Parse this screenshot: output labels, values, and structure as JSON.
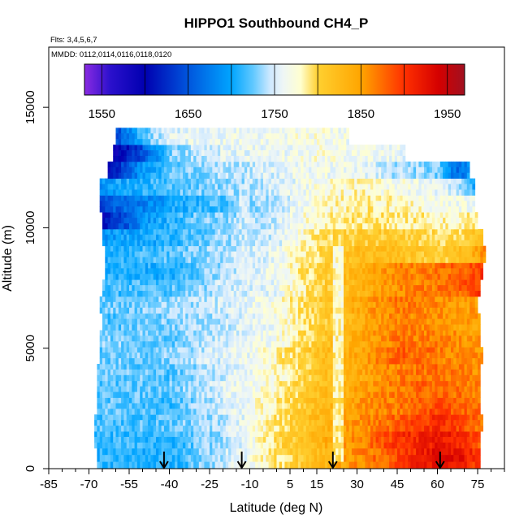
{
  "chart_data": {
    "type": "heatmap",
    "title": "HIPPO1 Southbound CH4_P",
    "flights_note": "Flts: 3,4,5,6,7",
    "mmdd_note": "MMDD: 0112,0114,0116,0118,0120",
    "xlabel": "Latitude (deg N)",
    "ylabel": "Altitude (m)",
    "xlim": [
      -85,
      85
    ],
    "ylim": [
      0,
      17500
    ],
    "x_major_ticks": [
      -85,
      -70,
      -55,
      -40,
      -25,
      -10,
      5,
      15,
      30,
      45,
      60,
      75
    ],
    "x_tick_labels": [
      "-85",
      "-70",
      "-55",
      "-40",
      "-25",
      "-10",
      "5",
      "15",
      "30",
      "45",
      "60",
      "75"
    ],
    "x_minor_ticks": [
      -80,
      -75,
      -65,
      -60,
      -50,
      -45,
      -35,
      -30,
      -20,
      -15,
      -5,
      0,
      10,
      20,
      25,
      35,
      40,
      50,
      55,
      65,
      70,
      80,
      85
    ],
    "y_ticks": [
      0,
      5000,
      10000,
      15000
    ],
    "y_tick_labels": [
      "0",
      "5000",
      "10000",
      "15000"
    ],
    "colorbar": {
      "min": 1530,
      "max": 1970,
      "ticks": [
        1550,
        1650,
        1750,
        1850,
        1950
      ],
      "tick_labels": [
        "1550",
        "1650",
        "1750",
        "1850",
        "1950"
      ],
      "divisions": [
        1550,
        1600,
        1650,
        1700,
        1750,
        1800,
        1850,
        1900,
        1950
      ],
      "stops": [
        {
          "value": 1530,
          "color": "#8a2be2"
        },
        {
          "value": 1560,
          "color": "#2b10cc"
        },
        {
          "value": 1600,
          "color": "#0000b0"
        },
        {
          "value": 1650,
          "color": "#0055dd"
        },
        {
          "value": 1700,
          "color": "#00a5ff"
        },
        {
          "value": 1725,
          "color": "#60c8ff"
        },
        {
          "value": 1745,
          "color": "#cfe9ff"
        },
        {
          "value": 1760,
          "color": "#eef6f6"
        },
        {
          "value": 1780,
          "color": "#ffffd0"
        },
        {
          "value": 1800,
          "color": "#ffd030"
        },
        {
          "value": 1850,
          "color": "#ffa500"
        },
        {
          "value": 1900,
          "color": "#ff3000"
        },
        {
          "value": 1940,
          "color": "#d40000"
        },
        {
          "value": 1970,
          "color": "#a01020"
        }
      ]
    },
    "profile_markers_lat": [
      -42,
      -13,
      21,
      61
    ],
    "altitude_levels_m": [
      500,
      1200,
      1900,
      2600,
      3300,
      4000,
      4700,
      5400,
      6100,
      6800,
      7500,
      8200,
      8900,
      9600,
      10300,
      11000,
      11700,
      12400,
      13100,
      13800
    ],
    "layers": [
      {
        "alt": 500,
        "lat_min": -67,
        "lat_max": 76,
        "profile": [
          [
            -67,
            1710
          ],
          [
            -40,
            1705
          ],
          [
            -20,
            1745
          ],
          [
            0,
            1790
          ],
          [
            15,
            1820
          ],
          [
            30,
            1860
          ],
          [
            45,
            1890
          ],
          [
            60,
            1930
          ],
          [
            70,
            1920
          ],
          [
            76,
            1890
          ]
        ]
      },
      {
        "alt": 1200,
        "lat_min": -68,
        "lat_max": 76,
        "profile": [
          [
            -68,
            1715
          ],
          [
            -40,
            1710
          ],
          [
            -20,
            1740
          ],
          [
            0,
            1795
          ],
          [
            15,
            1830
          ],
          [
            30,
            1860
          ],
          [
            45,
            1900
          ],
          [
            60,
            1920
          ],
          [
            70,
            1910
          ],
          [
            76,
            1880
          ]
        ]
      },
      {
        "alt": 1900,
        "lat_min": -68,
        "lat_max": 77,
        "profile": [
          [
            -68,
            1720
          ],
          [
            -40,
            1720
          ],
          [
            -20,
            1745
          ],
          [
            0,
            1790
          ],
          [
            15,
            1825
          ],
          [
            30,
            1855
          ],
          [
            45,
            1880
          ],
          [
            60,
            1905
          ],
          [
            70,
            1890
          ],
          [
            77,
            1870
          ]
        ]
      },
      {
        "alt": 2600,
        "lat_min": -67,
        "lat_max": 76,
        "profile": [
          [
            -67,
            1725
          ],
          [
            -40,
            1715
          ],
          [
            -20,
            1750
          ],
          [
            0,
            1785
          ],
          [
            15,
            1820
          ],
          [
            30,
            1850
          ],
          [
            45,
            1870
          ],
          [
            60,
            1890
          ],
          [
            70,
            1880
          ],
          [
            76,
            1870
          ]
        ]
      },
      {
        "alt": 3300,
        "lat_min": -67,
        "lat_max": 76,
        "profile": [
          [
            -67,
            1720
          ],
          [
            -40,
            1725
          ],
          [
            -20,
            1755
          ],
          [
            0,
            1780
          ],
          [
            15,
            1815
          ],
          [
            30,
            1845
          ],
          [
            45,
            1870
          ],
          [
            60,
            1880
          ],
          [
            70,
            1870
          ],
          [
            76,
            1860
          ]
        ]
      },
      {
        "alt": 4000,
        "lat_min": -67,
        "lat_max": 76,
        "profile": [
          [
            -67,
            1730
          ],
          [
            -40,
            1720
          ],
          [
            -20,
            1750
          ],
          [
            0,
            1775
          ],
          [
            15,
            1810
          ],
          [
            30,
            1840
          ],
          [
            45,
            1865
          ],
          [
            60,
            1875
          ],
          [
            70,
            1865
          ],
          [
            76,
            1860
          ]
        ]
      },
      {
        "alt": 4700,
        "lat_min": -66,
        "lat_max": 77,
        "profile": [
          [
            -66,
            1725
          ],
          [
            -40,
            1730
          ],
          [
            -20,
            1755
          ],
          [
            0,
            1780
          ],
          [
            15,
            1815
          ],
          [
            30,
            1845
          ],
          [
            45,
            1880
          ],
          [
            60,
            1870
          ],
          [
            70,
            1860
          ],
          [
            77,
            1855
          ]
        ]
      },
      {
        "alt": 5400,
        "lat_min": -66,
        "lat_max": 76,
        "profile": [
          [
            -66,
            1730
          ],
          [
            -40,
            1725
          ],
          [
            -20,
            1750
          ],
          [
            0,
            1770
          ],
          [
            15,
            1805
          ],
          [
            30,
            1840
          ],
          [
            45,
            1870
          ],
          [
            60,
            1865
          ],
          [
            70,
            1855
          ],
          [
            76,
            1850
          ]
        ]
      },
      {
        "alt": 6100,
        "lat_min": -65,
        "lat_max": 76,
        "profile": [
          [
            -65,
            1720
          ],
          [
            -40,
            1730
          ],
          [
            -20,
            1745
          ],
          [
            0,
            1765
          ],
          [
            15,
            1800
          ],
          [
            30,
            1835
          ],
          [
            45,
            1865
          ],
          [
            60,
            1860
          ],
          [
            70,
            1850
          ],
          [
            76,
            1850
          ]
        ]
      },
      {
        "alt": 6800,
        "lat_min": -66,
        "lat_max": 75,
        "profile": [
          [
            -66,
            1725
          ],
          [
            -40,
            1735
          ],
          [
            -20,
            1750
          ],
          [
            0,
            1770
          ],
          [
            15,
            1805
          ],
          [
            30,
            1840
          ],
          [
            45,
            1870
          ],
          [
            60,
            1860
          ],
          [
            70,
            1850
          ],
          [
            75,
            1850
          ]
        ]
      },
      {
        "alt": 7500,
        "lat_min": -65,
        "lat_max": 76,
        "profile": [
          [
            -65,
            1715
          ],
          [
            -40,
            1720
          ],
          [
            -20,
            1745
          ],
          [
            0,
            1760
          ],
          [
            15,
            1800
          ],
          [
            30,
            1830
          ],
          [
            45,
            1860
          ],
          [
            60,
            1870
          ],
          [
            70,
            1880
          ],
          [
            76,
            1900
          ]
        ]
      },
      {
        "alt": 8200,
        "lat_min": -64,
        "lat_max": 77,
        "profile": [
          [
            -64,
            1710
          ],
          [
            -40,
            1705
          ],
          [
            -20,
            1740
          ],
          [
            0,
            1765
          ],
          [
            15,
            1800
          ],
          [
            30,
            1830
          ],
          [
            45,
            1865
          ],
          [
            60,
            1870
          ],
          [
            70,
            1880
          ],
          [
            77,
            1900
          ]
        ]
      },
      {
        "alt": 8900,
        "lat_min": -64,
        "lat_max": 78,
        "profile": [
          [
            -64,
            1705
          ],
          [
            -40,
            1720
          ],
          [
            -20,
            1740
          ],
          [
            0,
            1760
          ],
          [
            15,
            1795
          ],
          [
            30,
            1820
          ],
          [
            45,
            1820
          ],
          [
            60,
            1800
          ],
          [
            70,
            1820
          ],
          [
            78,
            1860
          ]
        ]
      },
      {
        "alt": 9600,
        "lat_min": -65,
        "lat_max": 77,
        "profile": [
          [
            -65,
            1690
          ],
          [
            -40,
            1710
          ],
          [
            -20,
            1735
          ],
          [
            0,
            1750
          ],
          [
            15,
            1790
          ],
          [
            30,
            1805
          ],
          [
            45,
            1810
          ],
          [
            60,
            1795
          ],
          [
            70,
            1800
          ],
          [
            77,
            1820
          ]
        ]
      },
      {
        "alt": 10300,
        "lat_min": -65,
        "lat_max": 75,
        "profile": [
          [
            -65,
            1600
          ],
          [
            -50,
            1690
          ],
          [
            -30,
            1725
          ],
          [
            0,
            1750
          ],
          [
            15,
            1780
          ],
          [
            30,
            1790
          ],
          [
            45,
            1790
          ],
          [
            60,
            1780
          ],
          [
            70,
            1780
          ],
          [
            75,
            1790
          ]
        ]
      },
      {
        "alt": 11000,
        "lat_min": -66,
        "lat_max": 74,
        "profile": [
          [
            -66,
            1640
          ],
          [
            -40,
            1700
          ],
          [
            -20,
            1720
          ],
          [
            0,
            1745
          ],
          [
            15,
            1775
          ],
          [
            30,
            1785
          ],
          [
            45,
            1780
          ],
          [
            60,
            1770
          ],
          [
            70,
            1765
          ],
          [
            74,
            1760
          ]
        ]
      },
      {
        "alt": 11700,
        "lat_min": -66,
        "lat_max": 74,
        "profile": [
          [
            -66,
            1690
          ],
          [
            -40,
            1720
          ],
          [
            -20,
            1735
          ],
          [
            0,
            1750
          ],
          [
            15,
            1770
          ],
          [
            30,
            1780
          ],
          [
            45,
            1770
          ],
          [
            60,
            1760
          ],
          [
            70,
            1740
          ],
          [
            74,
            1700
          ]
        ]
      },
      {
        "alt": 12400,
        "lat_min": -63,
        "lat_max": 72,
        "profile": [
          [
            -63,
            1600
          ],
          [
            -50,
            1690
          ],
          [
            -40,
            1720
          ],
          [
            -20,
            1740
          ],
          [
            0,
            1755
          ],
          [
            15,
            1765
          ],
          [
            30,
            1760
          ],
          [
            45,
            1740
          ],
          [
            60,
            1730
          ],
          [
            68,
            1660
          ],
          [
            72,
            1700
          ]
        ]
      },
      {
        "alt": 13100,
        "lat_min": -61,
        "lat_max": 48,
        "profile": [
          [
            -61,
            1580
          ],
          [
            -50,
            1650
          ],
          [
            -40,
            1730
          ],
          [
            -20,
            1755
          ],
          [
            0,
            1760
          ],
          [
            15,
            1770
          ],
          [
            30,
            1765
          ],
          [
            48,
            1760
          ]
        ]
      },
      {
        "alt": 13800,
        "lat_min": -60,
        "lat_max": 27,
        "profile": [
          [
            -60,
            1640
          ],
          [
            -50,
            1720
          ],
          [
            -40,
            1755
          ],
          [
            -20,
            1762
          ],
          [
            0,
            1765
          ],
          [
            15,
            1770
          ],
          [
            27,
            1765
          ]
        ]
      }
    ],
    "stripe_overrides": [
      {
        "lat_min": 21,
        "lat_max": 25,
        "alt_min": 300,
        "alt_max": 9300,
        "value": 1752
      },
      {
        "lat_min": -14,
        "lat_max": -10,
        "alt_min": 300,
        "alt_max": 11500,
        "value": 1755
      }
    ]
  }
}
